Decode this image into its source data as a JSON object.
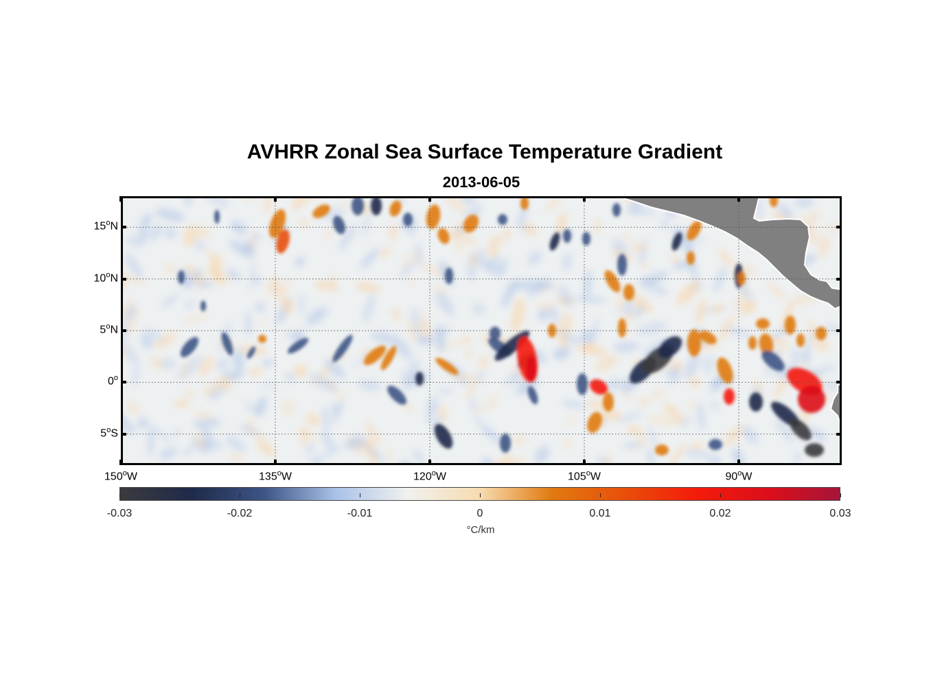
{
  "title": "AVHRR Zonal Sea Surface Temperature Gradient",
  "date": "2013-06-05",
  "map": {
    "type": "heatmap",
    "variable": "Zonal sea surface temperature gradient",
    "lon_range": [
      -150,
      -80
    ],
    "lat_range": [
      -8,
      18
    ],
    "lat_ticks": [
      {
        "deg": "15",
        "hemi": "N"
      },
      {
        "deg": "10",
        "hemi": "N"
      },
      {
        "deg": "5",
        "hemi": "N"
      },
      {
        "deg": "0",
        "hemi": ""
      },
      {
        "deg": "5",
        "hemi": "S"
      }
    ],
    "lon_ticks": [
      {
        "deg": "150",
        "hemi": "W"
      },
      {
        "deg": "135",
        "hemi": "W"
      },
      {
        "deg": "120",
        "hemi": "W"
      },
      {
        "deg": "105",
        "hemi": "W"
      },
      {
        "deg": "90",
        "hemi": "W"
      }
    ],
    "land_color": "#808080",
    "grid": "dotted"
  },
  "colorbar": {
    "ticks": [
      "-0.03",
      "-0.02",
      "-0.01",
      "0",
      "0.01",
      "0.02",
      "0.03"
    ],
    "range": [
      -0.03,
      0.03
    ],
    "units": "°C/km",
    "colors": [
      "#3b3b3e",
      "#1f2a4a",
      "#3d5585",
      "#a9c2e8",
      "#f1f1ee",
      "#f7dcb0",
      "#e07a10",
      "#e8500a",
      "#f41b0b",
      "#dc0f1a",
      "#a51539"
    ]
  }
}
